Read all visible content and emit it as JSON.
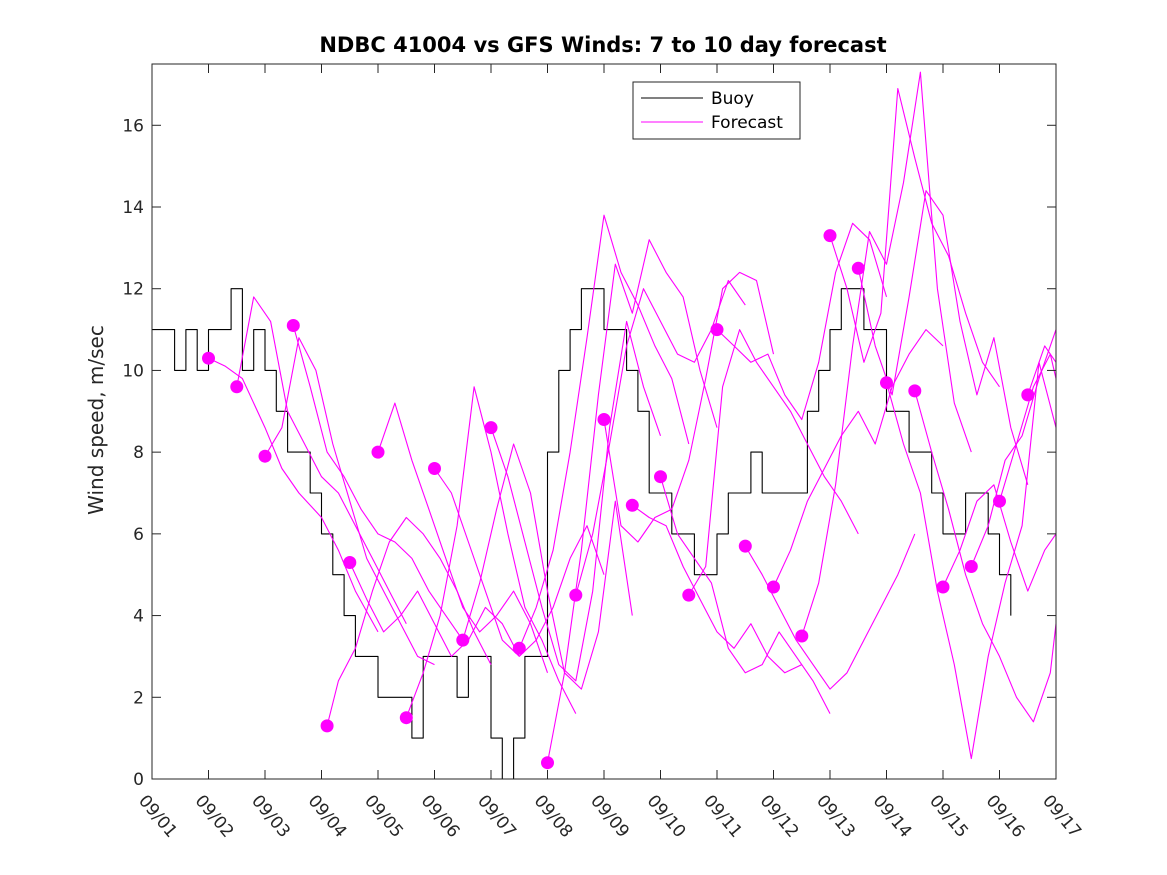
{
  "chart_data": {
    "type": "line",
    "title": "NDBC 41004 vs GFS Winds: 7 to 10 day forecast",
    "xlabel": "",
    "ylabel": "Wind speed, m/sec",
    "xlim": [
      0,
      16
    ],
    "ylim": [
      0,
      17.5
    ],
    "x_tick_values": [
      0,
      1,
      2,
      3,
      4,
      5,
      6,
      7,
      8,
      9,
      10,
      11,
      12,
      13,
      14,
      15,
      16
    ],
    "x_tick_labels": [
      "09/01",
      "09/02",
      "09/03",
      "09/04",
      "09/05",
      "09/06",
      "09/07",
      "09/08",
      "09/09",
      "09/10",
      "09/11",
      "09/12",
      "09/13",
      "09/14",
      "09/15",
      "09/16",
      "09/17"
    ],
    "y_tick_values": [
      0,
      2,
      4,
      6,
      8,
      10,
      12,
      14,
      16
    ],
    "y_tick_labels": [
      "0",
      "2",
      "4",
      "6",
      "8",
      "10",
      "12",
      "14",
      "16"
    ],
    "legend": {
      "position": "top-center",
      "entries": [
        {
          "label": "Buoy",
          "color": "#000000"
        },
        {
          "label": "Forecast",
          "color": "#ff00ff"
        }
      ]
    },
    "colors": {
      "buoy": "#000000",
      "forecast": "#ff00ff"
    },
    "series": [
      {
        "name": "Buoy",
        "x": [
          0,
          0.2,
          0.4,
          0.6,
          0.8,
          1.0,
          1.2,
          1.4,
          1.6,
          1.8,
          2.0,
          2.2,
          2.4,
          2.6,
          2.8,
          3.0,
          3.2,
          3.4,
          3.6,
          3.8,
          4.0,
          4.2,
          4.4,
          4.6,
          4.8,
          5.0,
          5.2,
          5.4,
          5.6,
          5.8,
          6.0,
          6.2,
          6.4,
          6.6,
          6.8,
          7.0,
          7.2,
          7.4,
          7.6,
          7.8,
          8.0,
          8.2,
          8.4,
          8.6,
          8.8,
          9.0,
          9.2,
          9.4,
          9.6,
          9.8,
          10.0,
          10.2,
          10.4,
          10.6,
          10.8,
          11.0,
          11.2,
          11.4,
          11.6,
          11.8,
          12.0,
          12.2,
          12.4,
          12.6,
          12.8,
          13.0,
          13.2,
          13.4,
          13.6,
          13.8,
          14.0,
          14.2,
          14.4,
          14.6,
          14.8,
          15.0,
          15.2,
          15.4,
          15.6,
          15.8,
          16.0
        ],
        "y": [
          11,
          11,
          10,
          11,
          10,
          11,
          11,
          12,
          10,
          11,
          10,
          9,
          8,
          8,
          7,
          6,
          5,
          4,
          3,
          3,
          2,
          2,
          2,
          1,
          3,
          3,
          3,
          2,
          3,
          3,
          1,
          0,
          1,
          3,
          3,
          8,
          10,
          11,
          12,
          12,
          11,
          11,
          10,
          9,
          7,
          7,
          6,
          6,
          5,
          5,
          6,
          7,
          7,
          8,
          7,
          7,
          7,
          7,
          9,
          10,
          11,
          12,
          12,
          11,
          11,
          9,
          9,
          8,
          8,
          7,
          6,
          6,
          7,
          7,
          6,
          5,
          4,
          null,
          null,
          null,
          null
        ]
      },
      {
        "name": "Forecast 1",
        "x": [
          1.0,
          1.3,
          1.6,
          2.0,
          2.3,
          2.6,
          3.0,
          3.3,
          3.6,
          4.0
        ],
        "y": [
          10.3,
          10.1,
          9.8,
          8.6,
          7.6,
          7.0,
          6.4,
          5.6,
          4.6,
          3.6
        ]
      },
      {
        "name": "Forecast 2",
        "x": [
          1.5,
          1.8,
          2.1,
          2.4,
          2.7,
          3.0,
          3.3,
          3.6,
          3.9,
          4.2,
          4.5
        ],
        "y": [
          9.6,
          11.8,
          11.2,
          9.0,
          8.2,
          7.4,
          7.0,
          6.2,
          5.4,
          4.6,
          3.8
        ]
      },
      {
        "name": "Forecast 3",
        "x": [
          2.0,
          2.3,
          2.6,
          2.9,
          3.2,
          3.5,
          3.8,
          4.1,
          4.4,
          4.7,
          5.0
        ],
        "y": [
          7.9,
          8.6,
          10.8,
          10.0,
          8.2,
          6.8,
          5.4,
          4.6,
          3.8,
          3.0,
          2.8
        ]
      },
      {
        "name": "Forecast 4",
        "x": [
          2.5,
          2.8,
          3.1,
          3.4,
          3.7,
          4.0,
          4.3,
          4.6,
          4.9,
          5.2,
          5.5
        ],
        "y": [
          11.1,
          9.6,
          8.0,
          7.4,
          6.6,
          6.0,
          5.8,
          5.4,
          4.6,
          4.0,
          3.4
        ]
      },
      {
        "name": "Forecast 5",
        "x": [
          3.1,
          3.3,
          3.6,
          3.9,
          4.2,
          4.5,
          4.8,
          5.1,
          5.4,
          5.7,
          6.0
        ],
        "y": [
          1.3,
          2.4,
          3.2,
          4.6,
          5.8,
          6.4,
          6.0,
          5.4,
          4.6,
          3.6,
          2.8
        ]
      },
      {
        "name": "Forecast 6",
        "x": [
          3.5,
          3.8,
          4.1,
          4.4,
          4.7,
          5.0,
          5.3,
          5.6,
          5.9,
          6.2,
          6.5
        ],
        "y": [
          5.3,
          4.4,
          3.6,
          4.0,
          4.6,
          3.8,
          3.0,
          3.4,
          4.2,
          3.8,
          3.0
        ]
      },
      {
        "name": "Forecast 7",
        "x": [
          4.0,
          4.3,
          4.6,
          4.9,
          5.2,
          5.5,
          5.8,
          6.1,
          6.4,
          6.7,
          7.0
        ],
        "y": [
          8.0,
          9.2,
          7.8,
          6.6,
          5.4,
          4.2,
          3.6,
          4.0,
          4.6,
          3.8,
          2.6
        ]
      },
      {
        "name": "Forecast 8",
        "x": [
          4.5,
          4.8,
          5.1,
          5.4,
          5.7,
          6.0,
          6.3,
          6.6,
          6.9,
          7.2,
          7.5
        ],
        "y": [
          1.5,
          2.6,
          4.0,
          6.2,
          9.6,
          8.0,
          6.0,
          4.2,
          3.4,
          2.4,
          1.6
        ]
      },
      {
        "name": "Forecast 9",
        "x": [
          5.0,
          5.3,
          5.6,
          5.9,
          6.2,
          6.5,
          6.8,
          7.1,
          7.4,
          7.7,
          8.0
        ],
        "y": [
          7.6,
          7.0,
          5.8,
          4.6,
          3.4,
          3.0,
          3.4,
          4.2,
          5.4,
          6.2,
          5.0
        ]
      },
      {
        "name": "Forecast 10",
        "x": [
          5.5,
          5.8,
          6.1,
          6.4,
          6.7,
          7.0,
          7.3,
          7.6,
          7.9,
          8.2,
          8.5
        ],
        "y": [
          3.4,
          4.8,
          6.6,
          8.2,
          7.0,
          4.6,
          2.6,
          2.2,
          3.6,
          6.8,
          4.0
        ]
      },
      {
        "name": "Forecast 11",
        "x": [
          6.0,
          6.3,
          6.6,
          6.9,
          7.2,
          7.5,
          7.8,
          8.1,
          8.4,
          8.7,
          9.0
        ],
        "y": [
          8.6,
          7.4,
          5.8,
          4.2,
          2.8,
          2.4,
          4.6,
          8.6,
          11.2,
          9.6,
          8.4
        ]
      },
      {
        "name": "Forecast 12",
        "x": [
          6.5,
          6.8,
          7.1,
          7.4,
          7.7,
          8.0,
          8.3,
          8.6,
          8.9,
          9.2,
          9.5
        ],
        "y": [
          3.2,
          4.2,
          5.6,
          8.0,
          10.8,
          13.8,
          12.4,
          11.6,
          10.6,
          9.8,
          8.2
        ]
      },
      {
        "name": "Forecast 13",
        "x": [
          7.0,
          7.3,
          7.6,
          7.9,
          8.2,
          8.5,
          8.8,
          9.1,
          9.4,
          9.7,
          10.0
        ],
        "y": [
          0.4,
          2.6,
          5.6,
          9.4,
          12.6,
          11.4,
          13.2,
          12.4,
          11.8,
          10.0,
          8.6
        ]
      },
      {
        "name": "Forecast 14",
        "x": [
          7.5,
          7.8,
          8.1,
          8.4,
          8.7,
          9.0,
          9.3,
          9.6,
          9.9,
          10.2,
          10.5
        ],
        "y": [
          4.5,
          6.0,
          8.2,
          10.6,
          12.0,
          11.2,
          10.4,
          10.2,
          11.0,
          12.2,
          11.6
        ]
      },
      {
        "name": "Forecast 15",
        "x": [
          8.0,
          8.3,
          8.6,
          8.9,
          9.2,
          9.5,
          9.8,
          10.1,
          10.4,
          10.7,
          11.0
        ],
        "y": [
          8.8,
          6.2,
          5.8,
          6.4,
          6.6,
          7.8,
          9.8,
          12.0,
          12.4,
          12.2,
          10.4
        ]
      },
      {
        "name": "Forecast 16",
        "x": [
          8.5,
          8.8,
          9.1,
          9.4,
          9.7,
          10.0,
          10.3,
          10.6,
          10.9,
          11.2,
          11.5
        ],
        "y": [
          6.7,
          6.4,
          6.2,
          5.2,
          4.4,
          3.6,
          3.2,
          3.8,
          3.0,
          2.6,
          2.8
        ]
      },
      {
        "name": "Forecast 17",
        "x": [
          9.0,
          9.3,
          9.6,
          9.9,
          10.2,
          10.5,
          10.8,
          11.1,
          11.4,
          11.7,
          12.0
        ],
        "y": [
          7.4,
          6.0,
          5.4,
          4.8,
          3.2,
          2.6,
          2.8,
          3.6,
          3.0,
          2.4,
          1.6
        ]
      },
      {
        "name": "Forecast 18",
        "x": [
          9.5,
          9.8,
          10.1,
          10.4,
          10.7,
          11.0,
          11.3,
          11.6,
          11.9,
          12.2,
          12.5
        ],
        "y": [
          4.5,
          5.2,
          9.6,
          11.0,
          10.2,
          9.6,
          9.0,
          8.2,
          7.4,
          6.8,
          6.0
        ]
      },
      {
        "name": "Forecast 19",
        "x": [
          10.0,
          10.3,
          10.6,
          10.9,
          11.2,
          11.5,
          11.8,
          12.1,
          12.4,
          12.7,
          13.0
        ],
        "y": [
          11.0,
          10.6,
          10.2,
          10.4,
          9.4,
          8.8,
          10.2,
          12.4,
          13.6,
          13.2,
          11.8
        ]
      },
      {
        "name": "Forecast 20",
        "x": [
          10.5,
          10.8,
          11.1,
          11.4,
          11.7,
          12.0,
          12.3,
          12.6,
          12.9,
          13.2,
          13.5
        ],
        "y": [
          5.7,
          5.0,
          4.2,
          3.4,
          2.8,
          2.2,
          2.6,
          3.4,
          4.2,
          5.0,
          6.0
        ]
      },
      {
        "name": "Forecast 21",
        "x": [
          11.0,
          11.3,
          11.6,
          11.9,
          12.2,
          12.5,
          12.8,
          13.1,
          13.4,
          13.7,
          14.0
        ],
        "y": [
          4.7,
          5.6,
          6.8,
          7.6,
          8.4,
          9.0,
          8.2,
          9.6,
          10.4,
          11.0,
          10.6
        ]
      },
      {
        "name": "Forecast 22",
        "x": [
          11.5,
          11.8,
          12.1,
          12.4,
          12.7,
          13.0,
          13.3,
          13.6,
          13.9,
          14.2,
          14.5
        ],
        "y": [
          3.5,
          4.8,
          7.2,
          10.6,
          13.4,
          12.6,
          14.6,
          17.3,
          12.0,
          9.2,
          8.0
        ]
      },
      {
        "name": "Forecast 23",
        "x": [
          12.0,
          12.3,
          12.6,
          12.9,
          13.2,
          13.5,
          13.8,
          14.1,
          14.4,
          14.7,
          15.0
        ],
        "y": [
          13.3,
          12.0,
          10.2,
          11.4,
          16.9,
          15.2,
          13.6,
          12.8,
          11.4,
          10.2,
          9.6
        ]
      },
      {
        "name": "Forecast 24",
        "x": [
          12.5,
          12.8,
          13.1,
          13.4,
          13.7,
          14.0,
          14.3,
          14.6,
          14.9,
          15.2,
          15.5
        ],
        "y": [
          12.5,
          10.6,
          9.4,
          11.8,
          14.4,
          13.8,
          11.2,
          9.4,
          10.8,
          8.6,
          7.2
        ]
      },
      {
        "name": "Forecast 25",
        "x": [
          13.0,
          13.3,
          13.6,
          13.9,
          14.2,
          14.5,
          14.8,
          15.1,
          15.4,
          15.7,
          16.0
        ],
        "y": [
          9.7,
          8.2,
          7.0,
          4.6,
          2.8,
          0.5,
          3.0,
          4.8,
          6.2,
          10.2,
          8.6
        ]
      },
      {
        "name": "Forecast 26",
        "x": [
          13.5,
          13.8,
          14.1,
          14.4,
          14.7,
          15.0,
          15.3,
          15.6,
          15.9,
          16.0
        ],
        "y": [
          9.5,
          8.0,
          6.6,
          5.0,
          3.8,
          3.0,
          2.0,
          1.4,
          2.6,
          3.8
        ]
      },
      {
        "name": "Forecast 27",
        "x": [
          14.0,
          14.3,
          14.6,
          14.9,
          15.2,
          15.5,
          15.8,
          16.0
        ],
        "y": [
          4.7,
          5.6,
          6.8,
          7.2,
          5.8,
          4.6,
          5.6,
          6.0
        ]
      },
      {
        "name": "Forecast 28",
        "x": [
          14.5,
          14.8,
          15.1,
          15.4,
          15.7,
          16.0
        ],
        "y": [
          5.2,
          6.2,
          7.8,
          8.4,
          9.8,
          11.0
        ]
      },
      {
        "name": "Forecast 29",
        "x": [
          15.0,
          15.3,
          15.6,
          15.9,
          16.0
        ],
        "y": [
          6.8,
          8.2,
          9.6,
          10.4,
          9.8
        ]
      },
      {
        "name": "Forecast 30",
        "x": [
          15.5,
          15.8,
          16.0
        ],
        "y": [
          9.4,
          10.6,
          10.2
        ]
      }
    ],
    "markers": {
      "name": "Forecast start points",
      "color": "#ff00ff",
      "x": [
        1.0,
        1.5,
        2.0,
        2.5,
        3.1,
        3.5,
        4.0,
        4.5,
        5.0,
        5.5,
        6.0,
        6.5,
        7.0,
        7.5,
        8.0,
        8.5,
        9.0,
        9.5,
        10.0,
        10.5,
        11.0,
        11.5,
        12.0,
        12.5,
        13.0,
        13.5,
        14.0,
        14.5,
        15.0,
        15.5
      ],
      "y": [
        10.3,
        9.6,
        7.9,
        11.1,
        1.3,
        5.3,
        8.0,
        1.5,
        7.6,
        3.4,
        8.6,
        3.2,
        0.4,
        4.5,
        8.8,
        6.7,
        7.4,
        4.5,
        11.0,
        5.7,
        4.7,
        3.5,
        13.3,
        12.5,
        9.7,
        9.5,
        4.7,
        5.2,
        6.8,
        9.4
      ]
    }
  }
}
